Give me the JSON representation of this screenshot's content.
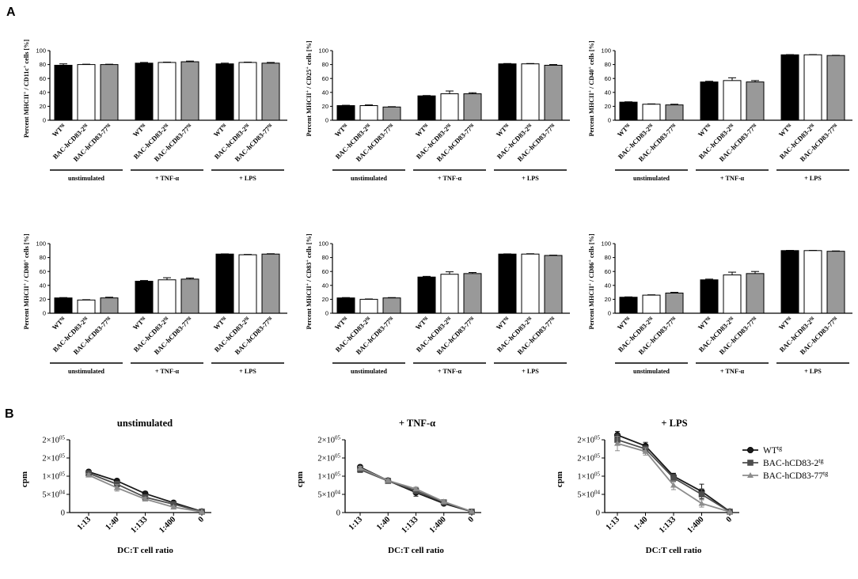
{
  "panel_labels": [
    "A",
    "B"
  ],
  "colors": {
    "wt": "#000000",
    "bac2": "#ffffff",
    "bac77": "#999999",
    "line_wt": "#1a1a1a",
    "line_bac2": "#4d4d4d",
    "line_bac77": "#8c8c8c"
  },
  "chart_data": [
    {
      "type": "bar",
      "id": "cd11c",
      "ylabel": {
        "pre": "Percent MHCII",
        "sup1": "+",
        "mid": " / CD11c",
        "sup2": "+",
        "post": " cells [%]"
      },
      "yticks": [
        "0",
        "20",
        "40",
        "60",
        "80",
        "100"
      ],
      "ylim": [
        0,
        100
      ],
      "bar_labels": [
        {
          "base": "WT",
          "sup": "tg"
        },
        {
          "base": "BAC-hCD83-2",
          "sup": "tg"
        },
        {
          "base": "BAC-hCD83-77",
          "sup": "tg"
        }
      ],
      "groups": [
        "unstimulated",
        "+ TNF-α",
        "+ LPS"
      ],
      "values": [
        [
          79,
          80,
          80
        ],
        [
          82,
          83,
          84
        ],
        [
          81,
          83,
          82
        ]
      ],
      "errors": [
        [
          2,
          0.5,
          0.5
        ],
        [
          1,
          0.5,
          1
        ],
        [
          1,
          0.5,
          1
        ]
      ]
    },
    {
      "type": "bar",
      "id": "cd25",
      "ylabel": {
        "pre": "Percent MHCII",
        "sup1": "+",
        "mid": " / CD25",
        "sup2": "+",
        "post": " cells [%]"
      },
      "yticks": [
        "0",
        "20",
        "40",
        "60",
        "80",
        "100"
      ],
      "ylim": [
        0,
        100
      ],
      "bar_labels": [
        {
          "base": "WT",
          "sup": "tg"
        },
        {
          "base": "BAC-hCD83-2",
          "sup": "tg"
        },
        {
          "base": "BAC-hCD83-77",
          "sup": "tg"
        }
      ],
      "groups": [
        "unstimulated",
        "+ TNF-α",
        "+ LPS"
      ],
      "values": [
        [
          21,
          21,
          19
        ],
        [
          35,
          38,
          38
        ],
        [
          81,
          81,
          79
        ]
      ],
      "errors": [
        [
          0.5,
          1,
          0.5
        ],
        [
          0.5,
          4,
          1.5
        ],
        [
          0.5,
          0.5,
          1
        ]
      ]
    },
    {
      "type": "bar",
      "id": "cd40",
      "ylabel": {
        "pre": "Percent MHCII",
        "sup1": "+",
        "mid": " / CD40",
        "sup2": "+",
        "post": " cells [%]"
      },
      "yticks": [
        "0",
        "20",
        "40",
        "60",
        "80",
        "100"
      ],
      "ylim": [
        0,
        100
      ],
      "bar_labels": [
        {
          "base": "WT",
          "sup": "tg"
        },
        {
          "base": "BAC-hCD83-2",
          "sup": "tg"
        },
        {
          "base": "BAC-hCD83-77",
          "sup": "tg"
        }
      ],
      "groups": [
        "unstimulated",
        "+ TNF-α",
        "+ LPS"
      ],
      "values": [
        [
          26,
          23,
          22
        ],
        [
          55,
          57,
          55
        ],
        [
          94,
          94,
          93
        ]
      ],
      "errors": [
        [
          0.5,
          0.5,
          1
        ],
        [
          1,
          4,
          2
        ],
        [
          0.3,
          0.3,
          0.3
        ]
      ]
    },
    {
      "type": "bar",
      "id": "cd80",
      "ylabel": {
        "pre": "Percent MHCII",
        "sup1": "+",
        "mid": " / CD80",
        "sup2": "+",
        "post": " cells [%]"
      },
      "yticks": [
        "0",
        "20",
        "40",
        "60",
        "80",
        "100"
      ],
      "ylim": [
        0,
        100
      ],
      "bar_labels": [
        {
          "base": "WT",
          "sup": "tg"
        },
        {
          "base": "BAC-hCD83-2",
          "sup": "tg"
        },
        {
          "base": "BAC-hCD83-77",
          "sup": "tg"
        }
      ],
      "groups": [
        "unstimulated",
        "+ TNF-α",
        "+ LPS"
      ],
      "values": [
        [
          22,
          19,
          22
        ],
        [
          46,
          48,
          49
        ],
        [
          85,
          84,
          85
        ]
      ],
      "errors": [
        [
          0.5,
          0.5,
          1
        ],
        [
          1,
          3,
          1.5
        ],
        [
          0.3,
          0.5,
          0.5
        ]
      ]
    },
    {
      "type": "bar",
      "id": "cd83",
      "ylabel": {
        "pre": "Percent MHCII",
        "sup1": "+",
        "mid": " / CD83",
        "sup2": "+",
        "post": " cells [%]"
      },
      "yticks": [
        "0",
        "20",
        "40",
        "60",
        "80",
        "100"
      ],
      "ylim": [
        0,
        100
      ],
      "bar_labels": [
        {
          "base": "WT",
          "sup": "tg"
        },
        {
          "base": "BAC-hCD83-2",
          "sup": "tg"
        },
        {
          "base": "BAC-hCD83-77",
          "sup": "tg"
        }
      ],
      "groups": [
        "unstimulated",
        "+ TNF-α",
        "+ LPS"
      ],
      "values": [
        [
          22,
          20,
          22
        ],
        [
          52,
          56,
          57
        ],
        [
          85,
          85,
          83
        ]
      ],
      "errors": [
        [
          0.5,
          0.5,
          0.5
        ],
        [
          1,
          3.5,
          1.5
        ],
        [
          0.3,
          0.5,
          0.5
        ]
      ]
    },
    {
      "type": "bar",
      "id": "cd86",
      "ylabel": {
        "pre": "Percent MHCII",
        "sup1": "+",
        "mid": " / CD86",
        "sup2": "+",
        "post": " cells [%]"
      },
      "yticks": [
        "0",
        "20",
        "40",
        "60",
        "80",
        "100"
      ],
      "ylim": [
        0,
        100
      ],
      "bar_labels": [
        {
          "base": "WT",
          "sup": "tg"
        },
        {
          "base": "BAC-hCD83-2",
          "sup": "tg"
        },
        {
          "base": "BAC-hCD83-77",
          "sup": "tg"
        }
      ],
      "groups": [
        "unstimulated",
        "+ TNF-α",
        "+ LPS"
      ],
      "values": [
        [
          23,
          26,
          29
        ],
        [
          48,
          55,
          57
        ],
        [
          90,
          90,
          89
        ]
      ],
      "errors": [
        [
          0.5,
          0.5,
          1
        ],
        [
          1,
          4,
          3
        ],
        [
          0.3,
          0.3,
          0.5
        ]
      ]
    },
    {
      "type": "line",
      "id": "mlr-unstim",
      "title": "unstimulated",
      "xlabel": "DC:T cell ratio",
      "ylabel": "cpm",
      "categories": [
        "1:13",
        "1:40",
        "1:133",
        "1:400",
        "0"
      ],
      "yticks": [
        {
          "base": "0",
          "exp": ""
        },
        {
          "base": "5×10",
          "exp": "04"
        },
        {
          "base": "1×10",
          "exp": "05"
        },
        {
          "base": "2×10",
          "exp": "05"
        },
        {
          "base": "2×10",
          "exp": "05"
        }
      ],
      "tick_values": [
        0,
        50000,
        100000,
        150000,
        200000
      ],
      "ylim": [
        0,
        200000
      ],
      "series": [
        {
          "name": "WT",
          "values": [
            112000,
            87000,
            52000,
            27000,
            3000
          ],
          "errors": [
            5000,
            3000,
            6000,
            3000,
            500
          ]
        },
        {
          "name": "BAC-hCD83-2",
          "values": [
            108000,
            78000,
            42000,
            23000,
            2500
          ],
          "errors": [
            6000,
            8000,
            7000,
            3000,
            500
          ]
        },
        {
          "name": "BAC-hCD83-77",
          "values": [
            103000,
            68000,
            37000,
            15000,
            2000
          ],
          "errors": [
            4000,
            9000,
            5000,
            3000,
            500
          ]
        }
      ]
    },
    {
      "type": "line",
      "id": "mlr-tnf",
      "title": "+ TNF-α",
      "xlabel": "DC:T cell ratio",
      "ylabel": "cpm",
      "categories": [
        "1:13",
        "1:40",
        "1:133",
        "1:400",
        "0"
      ],
      "yticks": [
        {
          "base": "0",
          "exp": ""
        },
        {
          "base": "5×10",
          "exp": "04"
        },
        {
          "base": "1×10",
          "exp": "05"
        },
        {
          "base": "2×10",
          "exp": "05"
        },
        {
          "base": "2×10",
          "exp": "05"
        }
      ],
      "tick_values": [
        0,
        50000,
        100000,
        150000,
        200000
      ],
      "ylim": [
        0,
        200000
      ],
      "series": [
        {
          "name": "WT",
          "values": [
            125000,
            88000,
            55000,
            25000,
            2500
          ],
          "errors": [
            5000,
            3000,
            10000,
            4000,
            500
          ]
        },
        {
          "name": "BAC-hCD83-2",
          "values": [
            118000,
            87000,
            60000,
            28000,
            2500
          ],
          "errors": [
            8000,
            4000,
            8000,
            4000,
            500
          ]
        },
        {
          "name": "BAC-hCD83-77",
          "values": [
            122000,
            88000,
            65000,
            30000,
            3000
          ],
          "errors": [
            5000,
            3000,
            5000,
            3000,
            500
          ]
        }
      ]
    },
    {
      "type": "line",
      "id": "mlr-lps",
      "title": "+ LPS",
      "xlabel": "DC:T cell ratio",
      "ylabel": "cpm",
      "categories": [
        "1:13",
        "1:40",
        "1:133",
        "1:400",
        "0"
      ],
      "yticks": [
        {
          "base": "0",
          "exp": ""
        },
        {
          "base": "5×10",
          "exp": "04"
        },
        {
          "base": "1×10",
          "exp": "05"
        },
        {
          "base": "2×10",
          "exp": "05"
        },
        {
          "base": "2×10",
          "exp": "05"
        }
      ],
      "tick_values": [
        0,
        50000,
        100000,
        150000,
        200000
      ],
      "ylim": [
        0,
        200000
      ],
      "series": [
        {
          "name": "WT",
          "values": [
            213000,
            183000,
            100000,
            58000,
            3000
          ],
          "errors": [
            10000,
            10000,
            8000,
            20000,
            500
          ]
        },
        {
          "name": "BAC-hCD83-2",
          "values": [
            200000,
            175000,
            95000,
            50000,
            2500
          ],
          "errors": [
            15000,
            8000,
            10000,
            15000,
            500
          ]
        },
        {
          "name": "BAC-hCD83-77",
          "values": [
            190000,
            168000,
            75000,
            25000,
            2000
          ],
          "errors": [
            20000,
            10000,
            12000,
            10000,
            500
          ]
        }
      ]
    }
  ],
  "legend": [
    {
      "base": "WT",
      "sup": "tg",
      "marker": "circle"
    },
    {
      "base": "BAC-hCD83-2",
      "sup": "tg",
      "marker": "square"
    },
    {
      "base": "BAC-hCD83-77",
      "sup": "tg",
      "marker": "triangle"
    }
  ]
}
